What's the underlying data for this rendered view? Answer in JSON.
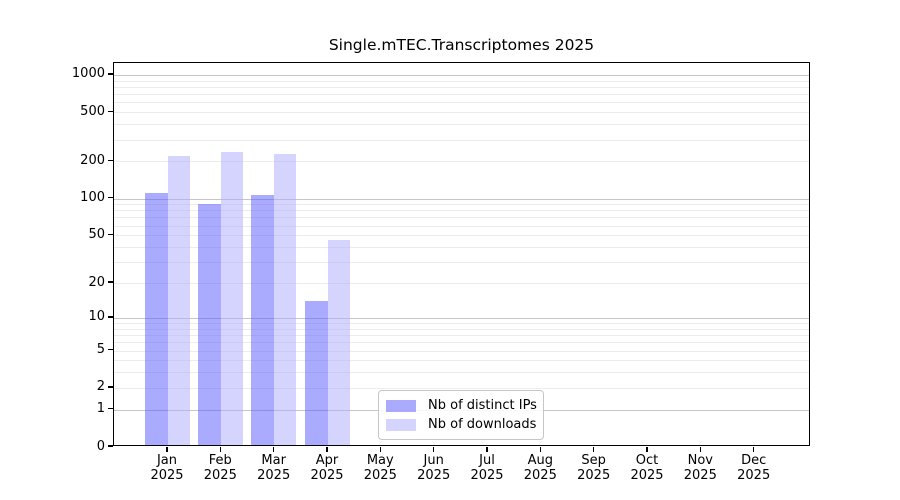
{
  "chart_data": {
    "type": "bar",
    "title": "Single.mTEC.Transcriptomes 2025",
    "months": [
      "Jan",
      "Feb",
      "Mar",
      "Apr",
      "May",
      "Jun",
      "Jul",
      "Aug",
      "Sep",
      "Oct",
      "Nov",
      "Dec"
    ],
    "year_label": "2025",
    "series": [
      {
        "name": "Nb of distinct IPs",
        "color": "rgba(85,85,255,0.5)",
        "values": [
          110,
          90,
          105,
          14,
          0,
          0,
          0,
          0,
          0,
          0,
          0,
          0
        ]
      },
      {
        "name": "Nb of downloads",
        "color": "rgba(170,170,255,0.5)",
        "values": [
          218,
          238,
          228,
          45,
          0,
          0,
          0,
          0,
          0,
          0,
          0,
          0
        ]
      }
    ],
    "y_ticks": [
      0,
      1,
      2,
      5,
      10,
      20,
      50,
      100,
      200,
      500,
      1000
    ],
    "y_scale": "log10(1+v)",
    "ylim": [
      0,
      1230
    ],
    "grid": "on",
    "legend_position": "lower center inside axes"
  },
  "colors": {
    "grid_major": "#c6c6c6",
    "grid_minor": "#ececec",
    "axis": "#000000",
    "background": "#ffffff",
    "legend_border": "#c6c6c6"
  }
}
